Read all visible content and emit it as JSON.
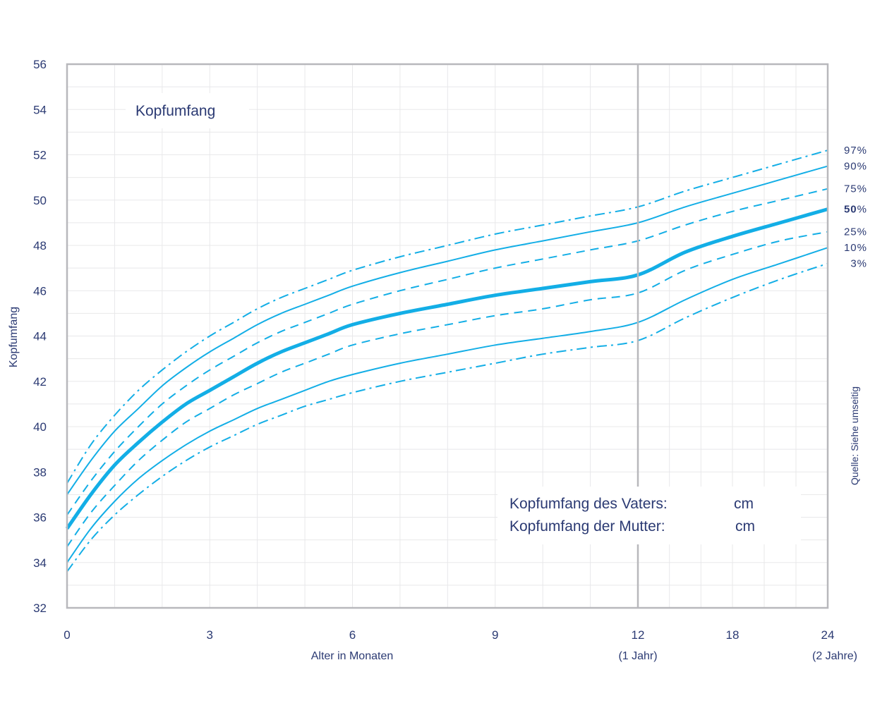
{
  "chart_data": {
    "type": "line",
    "title": "Kopfumfang",
    "xlabel": "Alter in Monaten",
    "ylabel": "Kopfumfang",
    "ylim": [
      32,
      56
    ],
    "y_ticks": [
      "32",
      "34",
      "36",
      "38",
      "40",
      "42",
      "44",
      "46",
      "48",
      "50",
      "52",
      "54",
      "56"
    ],
    "x_ticks": [
      {
        "month": 0,
        "label": "0",
        "sub": ""
      },
      {
        "month": 3,
        "label": "3",
        "sub": ""
      },
      {
        "month": 6,
        "label": "6",
        "sub": ""
      },
      {
        "month": 9,
        "label": "9",
        "sub": ""
      },
      {
        "month": 12,
        "label": "12",
        "sub": "(1 Jahr)"
      },
      {
        "month": 18,
        "label": "18",
        "sub": ""
      },
      {
        "month": 24,
        "label": "24",
        "sub": "(2 Jahre)"
      }
    ],
    "grid": true,
    "legend_placement": "right",
    "source_note": "Quelle: Siehe umseitig",
    "parent_box": {
      "father_label": "Kopfumfang des Vaters:",
      "father_unit": "cm",
      "mother_label": "Kopfumfang der Mutter:",
      "mother_unit": "cm"
    },
    "x": [
      0,
      0.5,
      1,
      1.5,
      2,
      2.5,
      3,
      3.5,
      4,
      4.5,
      5,
      5.5,
      6,
      7,
      8,
      9,
      10,
      11,
      12,
      15,
      18,
      21,
      24
    ],
    "series": [
      {
        "name": "97",
        "style": "dashdot",
        "values": [
          37.5,
          39.2,
          40.5,
          41.6,
          42.5,
          43.3,
          44.0,
          44.6,
          45.2,
          45.7,
          46.1,
          46.5,
          46.9,
          47.5,
          48.0,
          48.5,
          48.9,
          49.3,
          49.7,
          50.4,
          51.0,
          51.6,
          52.2
        ]
      },
      {
        "name": "90",
        "style": "solid",
        "values": [
          37.0,
          38.5,
          39.8,
          40.8,
          41.8,
          42.6,
          43.3,
          43.9,
          44.5,
          45.0,
          45.4,
          45.8,
          46.2,
          46.8,
          47.3,
          47.8,
          48.2,
          48.6,
          49.0,
          49.7,
          50.3,
          50.9,
          51.5
        ]
      },
      {
        "name": "75",
        "style": "dashed",
        "values": [
          36.1,
          37.6,
          38.9,
          40.0,
          41.0,
          41.8,
          42.5,
          43.1,
          43.7,
          44.2,
          44.6,
          45.0,
          45.4,
          46.0,
          46.5,
          47.0,
          47.4,
          47.8,
          48.2,
          48.9,
          49.5,
          50.0,
          50.5
        ]
      },
      {
        "name": "50",
        "style": "bold",
        "values": [
          35.5,
          37.0,
          38.3,
          39.3,
          40.2,
          41.0,
          41.6,
          42.2,
          42.8,
          43.3,
          43.7,
          44.1,
          44.5,
          45.0,
          45.4,
          45.8,
          46.1,
          46.4,
          46.7,
          47.7,
          48.4,
          49.0,
          49.6
        ]
      },
      {
        "name": "25",
        "style": "dashed",
        "values": [
          34.7,
          36.2,
          37.4,
          38.5,
          39.4,
          40.2,
          40.8,
          41.4,
          41.9,
          42.4,
          42.8,
          43.2,
          43.6,
          44.1,
          44.5,
          44.9,
          45.2,
          45.6,
          45.9,
          46.9,
          47.6,
          48.2,
          48.6
        ]
      },
      {
        "name": "10",
        "style": "solid",
        "values": [
          34.0,
          35.5,
          36.7,
          37.7,
          38.5,
          39.2,
          39.8,
          40.3,
          40.8,
          41.2,
          41.6,
          42.0,
          42.3,
          42.8,
          43.2,
          43.6,
          43.9,
          44.2,
          44.6,
          45.6,
          46.5,
          47.2,
          47.9
        ]
      },
      {
        "name": "3",
        "style": "dashdot",
        "values": [
          33.6,
          35.0,
          36.1,
          37.0,
          37.8,
          38.5,
          39.1,
          39.6,
          40.1,
          40.5,
          40.9,
          41.2,
          41.5,
          42.0,
          42.4,
          42.8,
          43.2,
          43.5,
          43.8,
          44.8,
          45.7,
          46.5,
          47.2
        ]
      }
    ],
    "colors": {
      "curve": "#13aee6",
      "axis": "#b8b8bc",
      "grid": "#e8e8ea",
      "text": "#2b3a73"
    }
  }
}
